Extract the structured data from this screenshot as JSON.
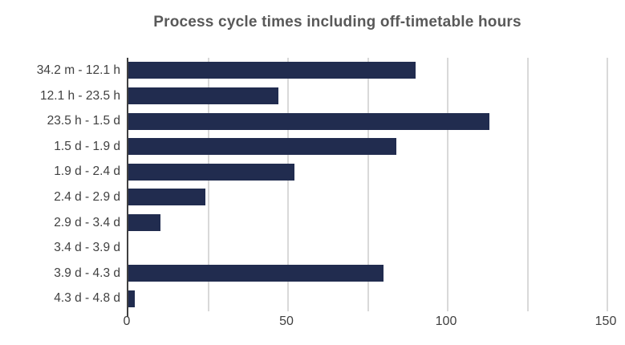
{
  "title": "Process cycle times including off-timetable hours",
  "colors": {
    "bar": "#212C4F",
    "title": "#595959",
    "axis_label": "#404040",
    "gridline": "#D9D9D9",
    "axis_line": "#404040",
    "background": "#FFFFFF"
  },
  "chart_data": {
    "type": "bar",
    "orientation": "horizontal",
    "title": "Process cycle times including off-timetable hours",
    "categories": [
      "34.2 m - 12.1 h",
      "12.1 h - 23.5 h",
      "23.5 h - 1.5 d",
      "1.5 d - 1.9 d",
      "1.9 d - 2.4 d",
      "2.4 d - 2.9 d",
      "2.9 d - 3.4 d",
      "3.4 d - 3.9 d",
      "3.9 d - 4.3 d",
      "4.3 d - 4.8 d"
    ],
    "values": [
      90,
      47,
      113,
      84,
      52,
      24,
      10,
      0,
      80,
      2
    ],
    "xlabel": "",
    "ylabel": "",
    "xlim": [
      0,
      150
    ],
    "xticks": [
      0,
      50,
      100,
      150
    ],
    "gridline_interval": 25,
    "grid": true,
    "legend": false,
    "bar_color": "#212C4F"
  }
}
